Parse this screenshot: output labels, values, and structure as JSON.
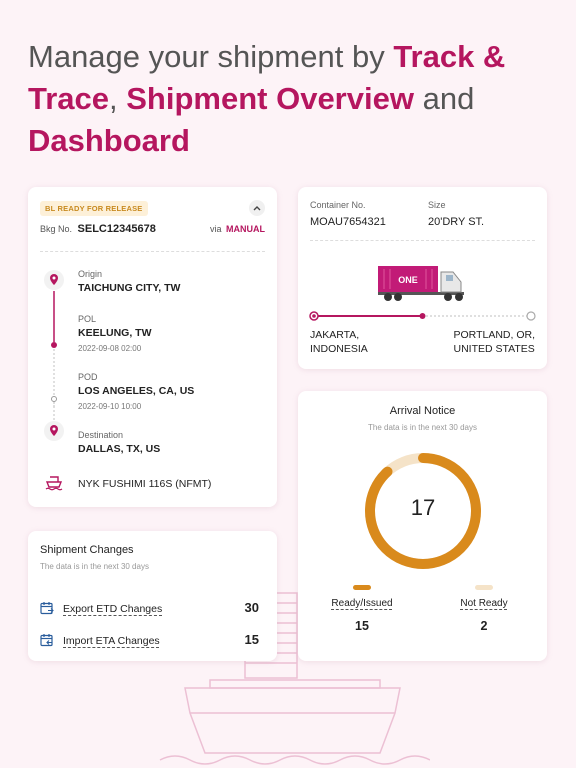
{
  "headline": {
    "part1": "Manage your shipment by ",
    "part2": "Track & Trace",
    "part3": ", ",
    "part4": "Shipment Overview",
    "part5": " and ",
    "part6": "Dashboard"
  },
  "track": {
    "badge": "BL READY FOR RELEASE",
    "bkg_label": "Bkg No.",
    "bkg_no": "SELC12345678",
    "via_label": "via",
    "via_value": "MANUAL",
    "origin": {
      "label": "Origin",
      "value": "TAICHUNG CITY, TW"
    },
    "pol": {
      "label": "POL",
      "value": "KEELUNG, TW",
      "date": "2022-09-08 02:00"
    },
    "pod": {
      "label": "POD",
      "value": "LOS ANGELES, CA, US",
      "date": "2022-09-10 10:00"
    },
    "destination": {
      "label": "Destination",
      "value": "DALLAS, TX, US"
    },
    "vessel": "NYK FUSHIMI 116S (NFMT)"
  },
  "container": {
    "no_label": "Container No.",
    "no_value": "MOAU7654321",
    "size_label": "Size",
    "size_value": "20'DRY ST.",
    "truck_text": "ONE",
    "from_line1": "JAKARTA,",
    "from_line2": "INDONESIA",
    "to_line1": "PORTLAND, OR,",
    "to_line2": "UNITED STATES",
    "progress": 0.5
  },
  "arrival": {
    "title": "Arrival Notice",
    "subtitle": "The data is in the next 30 days",
    "total": "17",
    "ready_label": "Ready/Issued",
    "ready_value": "15",
    "not_ready_label": "Not Ready",
    "not_ready_value": "2",
    "ready_color": "#d98a1c",
    "not_ready_color": "#f5e3c8"
  },
  "changes": {
    "title": "Shipment Changes",
    "subtitle": "The data is in the next 30 days",
    "etd_label": "Export ETD Changes",
    "etd_value": "30",
    "eta_label": "Import ETA Changes",
    "eta_value": "15"
  },
  "colors": {
    "accent": "#b5165f",
    "badge_bg": "#fdf0d8",
    "badge_text": "#c88a20"
  }
}
